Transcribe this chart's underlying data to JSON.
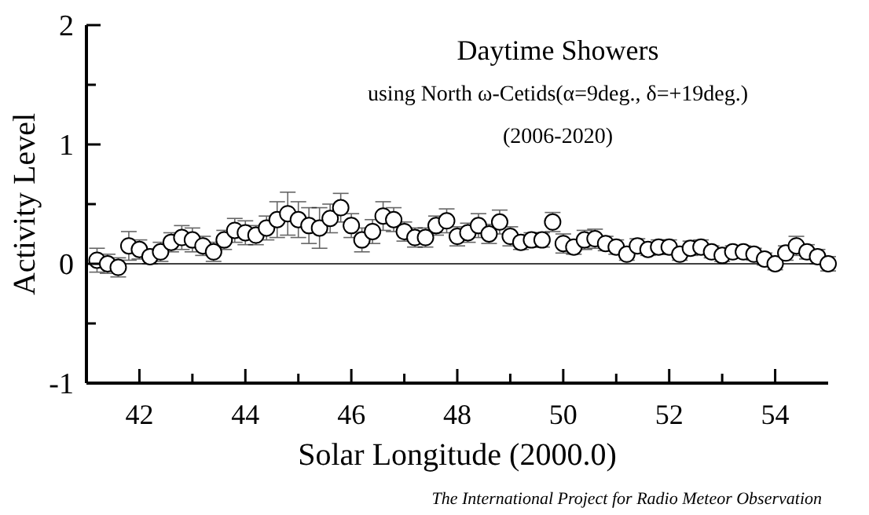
{
  "chart_data": {
    "type": "scatter",
    "title": "Daytime Showers",
    "subtitle": "using North ω-Cetids(α=9deg., δ=+19deg.)\n(2006-2020)",
    "xlabel": "Solar Longitude (2000.0)",
    "ylabel": "Activity Level",
    "annotations": [
      "The International Project for Radio Meteor Observation"
    ],
    "x": [
      41.2,
      41.4,
      41.6,
      41.8,
      42.0,
      42.2,
      42.4,
      42.6,
      42.8,
      43.0,
      43.2,
      43.4,
      43.6,
      43.8,
      44.0,
      44.2,
      44.4,
      44.6,
      44.8,
      45.0,
      45.2,
      45.4,
      45.6,
      45.8,
      46.0,
      46.2,
      46.4,
      46.6,
      46.8,
      47.0,
      47.2,
      47.4,
      47.6,
      47.8,
      48.0,
      48.2,
      48.4,
      48.6,
      48.8,
      49.0,
      49.2,
      49.4,
      49.6,
      49.8,
      50.0,
      50.2,
      50.4,
      50.6,
      50.8,
      51.0,
      51.2,
      51.4,
      51.6,
      51.8,
      52.0,
      52.2,
      52.4,
      52.6,
      52.8,
      53.0,
      53.2,
      53.4,
      53.6,
      53.8,
      54.0,
      54.2,
      54.4,
      54.6,
      54.8,
      55.0
    ],
    "series": [
      {
        "color": "#000000",
        "values": [
          0.03,
          0.0,
          -0.03,
          0.15,
          0.12,
          0.06,
          0.1,
          0.18,
          0.22,
          0.2,
          0.15,
          0.1,
          0.2,
          0.28,
          0.26,
          0.24,
          0.3,
          0.37,
          0.42,
          0.37,
          0.32,
          0.3,
          0.38,
          0.47,
          0.32,
          0.2,
          0.27,
          0.4,
          0.37,
          0.27,
          0.22,
          0.22,
          0.32,
          0.36,
          0.23,
          0.26,
          0.32,
          0.25,
          0.35,
          0.23,
          0.18,
          0.2,
          0.2,
          0.35,
          0.17,
          0.14,
          0.2,
          0.21,
          0.17,
          0.14,
          0.08,
          0.15,
          0.12,
          0.14,
          0.14,
          0.08,
          0.13,
          0.14,
          0.1,
          0.07,
          0.1,
          0.1,
          0.08,
          0.04,
          0.0,
          0.09,
          0.15,
          0.1,
          0.06,
          0.0
        ],
        "errors": [
          0.1,
          0.08,
          0.08,
          0.12,
          0.08,
          0.06,
          0.08,
          0.08,
          0.1,
          0.1,
          0.08,
          0.08,
          0.08,
          0.1,
          0.1,
          0.08,
          0.1,
          0.15,
          0.18,
          0.15,
          0.15,
          0.17,
          0.12,
          0.12,
          0.1,
          0.1,
          0.1,
          0.12,
          0.1,
          0.08,
          0.08,
          0.08,
          0.08,
          0.1,
          0.08,
          0.08,
          0.1,
          0.08,
          0.1,
          0.08,
          0.06,
          0.06,
          0.06,
          0.08,
          0.08,
          0.06,
          0.08,
          0.08,
          0.06,
          0.06,
          0.05,
          0.06,
          0.05,
          0.06,
          0.06,
          0.05,
          0.06,
          0.06,
          0.05,
          0.05,
          0.05,
          0.05,
          0.05,
          0.05,
          0.05,
          0.06,
          0.08,
          0.06,
          0.06,
          0.06
        ]
      }
    ],
    "xlim": [
      41,
      55
    ],
    "xticks": [
      42,
      {
        "value": 43,
        "label": null
      },
      44,
      {
        "value": 45,
        "label": null
      },
      46,
      {
        "value": 47,
        "label": null
      },
      48,
      {
        "value": 49,
        "label": null
      },
      50,
      {
        "value": 51,
        "label": null
      },
      52,
      {
        "value": 53,
        "label": null
      },
      54
    ],
    "ylim": [
      -1,
      2
    ],
    "yticks": [
      -1,
      {
        "value": -0.5,
        "label": null
      },
      0,
      {
        "value": 0.5,
        "label": null
      },
      1,
      {
        "value": 1.5,
        "label": null
      },
      2
    ],
    "ref_lines": [
      {
        "axis": "y",
        "value": 0,
        "color": "#000000"
      }
    ],
    "marker": "circle",
    "grid": false
  }
}
